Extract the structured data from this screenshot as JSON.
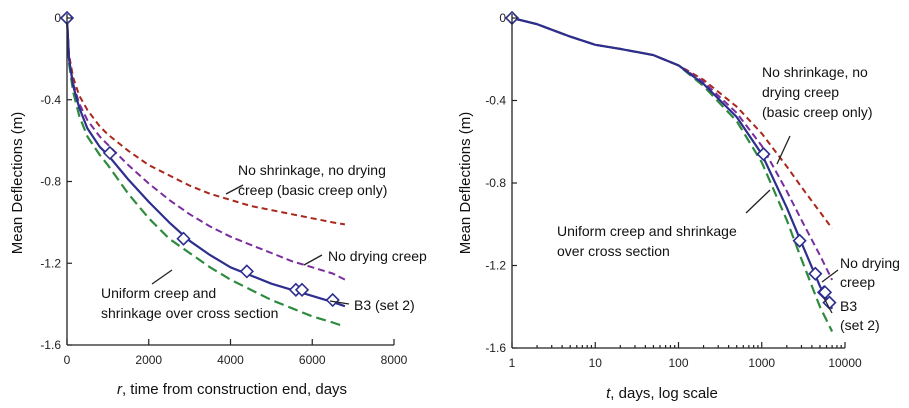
{
  "colors": {
    "b3": "#2e2e8f",
    "no_drying": "#7a2e9e",
    "no_shrinkage": "#a8281c",
    "uniform": "#2e8b3e",
    "axis": "#222222",
    "marker": "#2e2e8f"
  },
  "chart_data": [
    {
      "type": "line",
      "xlabel_italic": "r",
      "xlabel_rest": ", time from construction end, days",
      "ylabel": "Mean Deflections (m)",
      "xlim": [
        0,
        8000
      ],
      "ylim": [
        -1.6,
        0
      ],
      "x_scale": "linear",
      "x_ticks": [
        0,
        2000,
        4000,
        6000,
        8000
      ],
      "x_tick_labels": [
        "0",
        "2000",
        "4000",
        "6000",
        "8000"
      ],
      "y_ticks": [
        0,
        -0.4,
        -0.8,
        -1.2,
        -1.6
      ],
      "y_tick_labels": [
        "0",
        "-0.4",
        "-0.8",
        "-1.2",
        "-1.6"
      ],
      "series": [
        {
          "key": "b3",
          "x": [
            0,
            50,
            150,
            300,
            500,
            800,
            1000,
            1500,
            2000,
            2500,
            3000,
            3500,
            4000,
            4500,
            5000,
            5500,
            6000,
            6500,
            6800
          ],
          "y": [
            0,
            -0.2,
            -0.33,
            -0.44,
            -0.54,
            -0.63,
            -0.67,
            -0.79,
            -0.9,
            -1.0,
            -1.09,
            -1.16,
            -1.22,
            -1.26,
            -1.3,
            -1.33,
            -1.36,
            -1.39,
            -1.41
          ]
        },
        {
          "key": "no_drying",
          "x": [
            0,
            50,
            150,
            300,
            500,
            800,
            1000,
            1500,
            2000,
            2500,
            3000,
            3500,
            4000,
            4500,
            5000,
            5500,
            6000,
            6500,
            6800
          ],
          "y": [
            0,
            -0.2,
            -0.32,
            -0.42,
            -0.5,
            -0.58,
            -0.62,
            -0.72,
            -0.81,
            -0.89,
            -0.96,
            -1.02,
            -1.07,
            -1.11,
            -1.15,
            -1.19,
            -1.22,
            -1.25,
            -1.28
          ]
        },
        {
          "key": "no_shrinkage",
          "x": [
            0,
            50,
            150,
            300,
            500,
            800,
            1000,
            1500,
            2000,
            2500,
            3000,
            3500,
            4000,
            4500,
            5000,
            5500,
            6000,
            6500,
            6800
          ],
          "y": [
            0,
            -0.18,
            -0.29,
            -0.38,
            -0.45,
            -0.53,
            -0.57,
            -0.65,
            -0.72,
            -0.77,
            -0.82,
            -0.86,
            -0.89,
            -0.92,
            -0.94,
            -0.96,
            -0.98,
            -1.0,
            -1.01
          ]
        },
        {
          "key": "uniform",
          "x": [
            0,
            50,
            150,
            300,
            500,
            800,
            1000,
            1500,
            2000,
            2500,
            3000,
            3500,
            4000,
            4500,
            5000,
            5500,
            6000,
            6500,
            6800
          ],
          "y": [
            0,
            -0.22,
            -0.36,
            -0.48,
            -0.58,
            -0.67,
            -0.72,
            -0.86,
            -0.98,
            -1.08,
            -1.15,
            -1.22,
            -1.28,
            -1.33,
            -1.38,
            -1.42,
            -1.46,
            -1.49,
            -1.51
          ]
        }
      ],
      "markers": {
        "x": [
          0,
          1050,
          2850,
          4400,
          5600,
          5750,
          6500
        ],
        "y": [
          0,
          -0.66,
          -1.08,
          -1.24,
          -1.33,
          -1.33,
          -1.38
        ]
      },
      "annotations": [
        {
          "lines": [
            "No shrinkage, no drying",
            "creep (basic creep only)"
          ]
        },
        {
          "lines": [
            "No drying creep"
          ]
        },
        {
          "lines": [
            "Uniform creep and",
            "shrinkage over cross section"
          ]
        },
        {
          "lines": [
            "B3 (set 2)"
          ]
        }
      ]
    },
    {
      "type": "line",
      "xlabel_italic": "t",
      "xlabel_rest": ", days, log scale",
      "ylabel": "Mean Deflections (m)",
      "xlim": [
        1,
        10000
      ],
      "ylim": [
        -1.6,
        0
      ],
      "x_scale": "log",
      "x_ticks": [
        1,
        10,
        100,
        1000,
        10000
      ],
      "x_tick_labels": [
        "1",
        "10",
        "100",
        "1000",
        "10000"
      ],
      "y_ticks": [
        0,
        -0.4,
        -0.8,
        -1.2,
        -1.6
      ],
      "y_tick_labels": [
        "0",
        "-0.4",
        "-0.8",
        "-1.2",
        "-1.6"
      ],
      "series": [
        {
          "key": "b3",
          "x": [
            1,
            2,
            5,
            10,
            20,
            50,
            100,
            200,
            500,
            1000,
            2000,
            3000,
            5000,
            7000
          ],
          "y": [
            0,
            -0.03,
            -0.09,
            -0.13,
            -0.15,
            -0.18,
            -0.23,
            -0.32,
            -0.48,
            -0.66,
            -0.92,
            -1.09,
            -1.3,
            -1.41
          ]
        },
        {
          "key": "no_drying",
          "x": [
            1,
            2,
            5,
            10,
            20,
            50,
            100,
            200,
            500,
            1000,
            2000,
            3000,
            5000,
            7000
          ],
          "y": [
            0,
            -0.03,
            -0.09,
            -0.13,
            -0.15,
            -0.18,
            -0.23,
            -0.31,
            -0.46,
            -0.62,
            -0.84,
            -0.98,
            -1.15,
            -1.27
          ]
        },
        {
          "key": "no_shrinkage",
          "x": [
            1,
            2,
            5,
            10,
            20,
            50,
            100,
            200,
            500,
            1000,
            2000,
            3000,
            5000,
            7000
          ],
          "y": [
            0,
            -0.03,
            -0.09,
            -0.13,
            -0.15,
            -0.18,
            -0.23,
            -0.3,
            -0.43,
            -0.56,
            -0.72,
            -0.82,
            -0.94,
            -1.02
          ]
        },
        {
          "key": "uniform",
          "x": [
            1,
            2,
            5,
            10,
            20,
            50,
            100,
            200,
            500,
            1000,
            2000,
            3000,
            5000,
            7000
          ],
          "y": [
            0,
            -0.03,
            -0.09,
            -0.13,
            -0.15,
            -0.18,
            -0.23,
            -0.33,
            -0.5,
            -0.7,
            -0.98,
            -1.17,
            -1.4,
            -1.52
          ]
        }
      ],
      "markers": {
        "x": [
          1,
          1050,
          2850,
          4400,
          5600,
          5750,
          6500
        ],
        "y": [
          0,
          -0.66,
          -1.08,
          -1.24,
          -1.33,
          -1.33,
          -1.38
        ]
      },
      "annotations": [
        {
          "lines": [
            "No shrinkage, no",
            "drying creep",
            "(basic creep only)"
          ]
        },
        {
          "lines": [
            "Uniform creep and shrinkage",
            "over cross section"
          ]
        },
        {
          "lines": [
            "No drying",
            "creep"
          ]
        },
        {
          "lines": [
            "B3",
            "(set 2)"
          ]
        }
      ]
    }
  ]
}
